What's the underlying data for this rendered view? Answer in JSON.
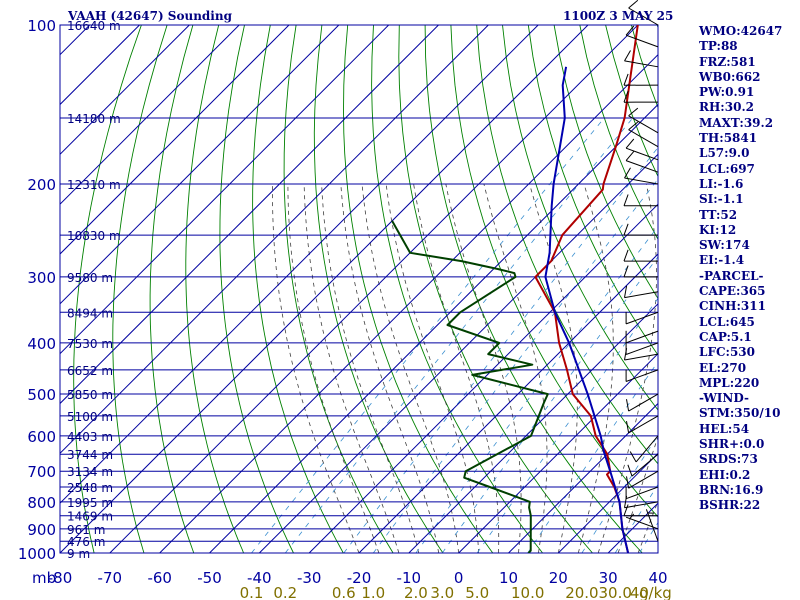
{
  "chart_data": {
    "type": "line",
    "title": "VAAH (42647) Sounding",
    "time_label": "1100Z  3 MAY 25",
    "pressure_levels_mb": [
      100,
      200,
      300,
      400,
      500,
      600,
      700,
      800,
      900,
      1000
    ],
    "pressure_minor_levels_mb": [
      150,
      250,
      350,
      450,
      550,
      650,
      750,
      850,
      950
    ],
    "height_labels": [
      {
        "p": 100,
        "label": "16640 m"
      },
      {
        "p": 150,
        "label": "14180 m"
      },
      {
        "p": 200,
        "label": "12310 m"
      },
      {
        "p": 250,
        "label": "10830 m"
      },
      {
        "p": 300,
        "label": "9580 m"
      },
      {
        "p": 350,
        "label": "8494 m"
      },
      {
        "p": 400,
        "label": "7530 m"
      },
      {
        "p": 450,
        "label": "6652 m"
      },
      {
        "p": 500,
        "label": "5850 m"
      },
      {
        "p": 550,
        "label": "5100 m"
      },
      {
        "p": 600,
        "label": "4403 m"
      },
      {
        "p": 650,
        "label": "3744 m"
      },
      {
        "p": 700,
        "label": "3134 m"
      },
      {
        "p": 750,
        "label": "2548 m"
      },
      {
        "p": 800,
        "label": "1995 m"
      },
      {
        "p": 850,
        "label": "1469 m"
      },
      {
        "p": 900,
        "label": "961 m"
      },
      {
        "p": 950,
        "label": "476 m"
      },
      {
        "p": 1000,
        "label": "9 m"
      }
    ],
    "temperature_ticks": [
      -80,
      -70,
      -60,
      -50,
      -40,
      -30,
      -20,
      -10,
      0,
      10,
      20,
      30,
      40
    ],
    "temperature_tick_labels": [
      "-80",
      "-70",
      "-60",
      "-50",
      "-40",
      "-30",
      "-20",
      "-10",
      "0",
      "10",
      "20",
      "30",
      "40"
    ],
    "xlim": [
      -80,
      40
    ],
    "ylim": [
      1000,
      100
    ],
    "pressure_unit_label": "mb",
    "mixing_ratio_labels": [
      "0.1",
      "0.2",
      "0.6",
      "1.0",
      "2.0",
      "3.0",
      "5.0",
      "10.0",
      "20.0",
      "30.0",
      "40"
    ],
    "mixing_ratio_unit": "g/kg",
    "series": [
      {
        "role": "temperature",
        "color": "#b00000",
        "points": [
          {
            "p": 100,
            "t": -70
          },
          {
            "p": 150,
            "t": -54
          },
          {
            "p": 170,
            "t": -50
          },
          {
            "p": 200,
            "t": -45
          },
          {
            "p": 205,
            "t": -44
          },
          {
            "p": 250,
            "t": -43
          },
          {
            "p": 280,
            "t": -40
          },
          {
            "p": 300,
            "t": -40
          },
          {
            "p": 350,
            "t": -29
          },
          {
            "p": 400,
            "t": -22
          },
          {
            "p": 450,
            "t": -15
          },
          {
            "p": 500,
            "t": -9
          },
          {
            "p": 550,
            "t": -1
          },
          {
            "p": 600,
            "t": 4
          },
          {
            "p": 650,
            "t": 10
          },
          {
            "p": 700,
            "t": 14
          },
          {
            "p": 710,
            "t": 14
          },
          {
            "p": 750,
            "t": 18
          },
          {
            "p": 800,
            "t": 22
          },
          {
            "p": 900,
            "t": 28
          },
          {
            "p": 1000,
            "t": 34
          }
        ]
      },
      {
        "role": "dewpoint",
        "color": "#004000",
        "points": [
          {
            "p": 235,
            "t": -80
          },
          {
            "p": 270,
            "t": -70
          },
          {
            "p": 280,
            "t": -58
          },
          {
            "p": 290,
            "t": -49
          },
          {
            "p": 295,
            "t": -45
          },
          {
            "p": 300,
            "t": -44
          },
          {
            "p": 350,
            "t": -48
          },
          {
            "p": 370,
            "t": -48
          },
          {
            "p": 400,
            "t": -34
          },
          {
            "p": 420,
            "t": -34
          },
          {
            "p": 440,
            "t": -23
          },
          {
            "p": 460,
            "t": -33
          },
          {
            "p": 500,
            "t": -14
          },
          {
            "p": 520,
            "t": -13
          },
          {
            "p": 600,
            "t": -9
          },
          {
            "p": 700,
            "t": -15
          },
          {
            "p": 720,
            "t": -14
          },
          {
            "p": 750,
            "t": -7
          },
          {
            "p": 800,
            "t": 4
          },
          {
            "p": 820,
            "t": 5
          },
          {
            "p": 850,
            "t": 7
          },
          {
            "p": 990,
            "t": 14
          },
          {
            "p": 1000,
            "t": 14
          }
        ]
      },
      {
        "role": "parcel",
        "color": "#0000b0",
        "points": [
          {
            "p": 1000,
            "t": 34
          },
          {
            "p": 900,
            "t": 28
          },
          {
            "p": 800,
            "t": 22
          },
          {
            "p": 700,
            "t": 14
          },
          {
            "p": 645,
            "t": 9
          },
          {
            "p": 600,
            "t": 5
          },
          {
            "p": 500,
            "t": -6
          },
          {
            "p": 400,
            "t": -20
          },
          {
            "p": 350,
            "t": -29
          },
          {
            "p": 300,
            "t": -38
          },
          {
            "p": 270,
            "t": -42
          },
          {
            "p": 220,
            "t": -51
          },
          {
            "p": 200,
            "t": -55
          },
          {
            "p": 150,
            "t": -66
          },
          {
            "p": 130,
            "t": -73
          },
          {
            "p": 120,
            "t": -76
          }
        ]
      }
    ],
    "wind_barbs": [
      {
        "p": 100,
        "dir": 300,
        "spd": 10
      },
      {
        "p": 110,
        "dir": 290,
        "spd": 10
      },
      {
        "p": 120,
        "dir": 280,
        "spd": 10
      },
      {
        "p": 130,
        "dir": 270,
        "spd": 10
      },
      {
        "p": 140,
        "dir": 270,
        "spd": 10
      },
      {
        "p": 160,
        "dir": 300,
        "spd": 10
      },
      {
        "p": 170,
        "dir": 300,
        "spd": 10
      },
      {
        "p": 180,
        "dir": 290,
        "spd": 10
      },
      {
        "p": 190,
        "dir": 290,
        "spd": 10
      },
      {
        "p": 200,
        "dir": 280,
        "spd": 10
      },
      {
        "p": 220,
        "dir": 270,
        "spd": 10
      },
      {
        "p": 250,
        "dir": 270,
        "spd": 10
      },
      {
        "p": 280,
        "dir": 270,
        "spd": 10
      },
      {
        "p": 300,
        "dir": 270,
        "spd": 10
      },
      {
        "p": 320,
        "dir": 260,
        "spd": 10
      },
      {
        "p": 350,
        "dir": 250,
        "spd": 10
      },
      {
        "p": 380,
        "dir": 250,
        "spd": 10
      },
      {
        "p": 400,
        "dir": 250,
        "spd": 10
      },
      {
        "p": 420,
        "dir": 260,
        "spd": 10
      },
      {
        "p": 450,
        "dir": 250,
        "spd": 10
      },
      {
        "p": 500,
        "dir": 240,
        "spd": 10
      },
      {
        "p": 550,
        "dir": 240,
        "spd": 10
      },
      {
        "p": 600,
        "dir": 220,
        "spd": 10
      },
      {
        "p": 650,
        "dir": 230,
        "spd": 10
      },
      {
        "p": 700,
        "dir": 240,
        "spd": 10
      },
      {
        "p": 750,
        "dir": 250,
        "spd": 10
      },
      {
        "p": 800,
        "dir": 260,
        "spd": 10
      },
      {
        "p": 850,
        "dir": 270,
        "spd": 10
      },
      {
        "p": 900,
        "dir": 290,
        "spd": 5
      },
      {
        "p": 950,
        "dir": 340,
        "spd": 5
      }
    ],
    "indices": [
      {
        "label": "WMO",
        "value": "42647"
      },
      {
        "label": "TP",
        "value": "88"
      },
      {
        "label": "FRZ",
        "value": "581"
      },
      {
        "label": "WB0",
        "value": "662"
      },
      {
        "label": "PW",
        "value": "0.91"
      },
      {
        "label": "RH",
        "value": "30.2"
      },
      {
        "label": "MAXT",
        "value": "39.2"
      },
      {
        "label": "TH",
        "value": "5841"
      },
      {
        "label": "L57",
        "value": "9.0"
      },
      {
        "label": "LCL",
        "value": "697"
      },
      {
        "label": "LI",
        "value": "-1.6"
      },
      {
        "label": "SI",
        "value": "-1.1"
      },
      {
        "label": "TT",
        "value": "52"
      },
      {
        "label": "KI",
        "value": "12"
      },
      {
        "label": "SW",
        "value": "174"
      },
      {
        "label": "EI",
        "value": "-1.4"
      },
      {
        "label": "-PARCEL-",
        "value": ""
      },
      {
        "label": "CAPE",
        "value": "365"
      },
      {
        "label": "CINH",
        "value": "311"
      },
      {
        "label": "LCL",
        "value": "645"
      },
      {
        "label": "CAP",
        "value": "5.1"
      },
      {
        "label": "LFC",
        "value": "530"
      },
      {
        "label": "EL",
        "value": "270"
      },
      {
        "label": "MPL",
        "value": "220"
      },
      {
        "label": "-WIND-",
        "value": ""
      },
      {
        "label": "STM",
        "value": "350/10"
      },
      {
        "label": "HEL",
        "value": "54"
      },
      {
        "label": "SHR+",
        "value": "0.0"
      },
      {
        "label": "SRDS",
        "value": "73"
      },
      {
        "label": "EHI",
        "value": "0.2"
      },
      {
        "label": "BRN",
        "value": "16.9"
      },
      {
        "label": "BSHR",
        "value": "22"
      }
    ]
  },
  "colors": {
    "grid": "#0000a0",
    "isotherm": "#0000a0",
    "dry_adiabat": "#008000",
    "moist_adiabat": "#404040",
    "mixing_ratio": "#3a8fd0",
    "axis_text": "#0000a0",
    "mixing_text": "#807000",
    "barb": "#000000"
  }
}
